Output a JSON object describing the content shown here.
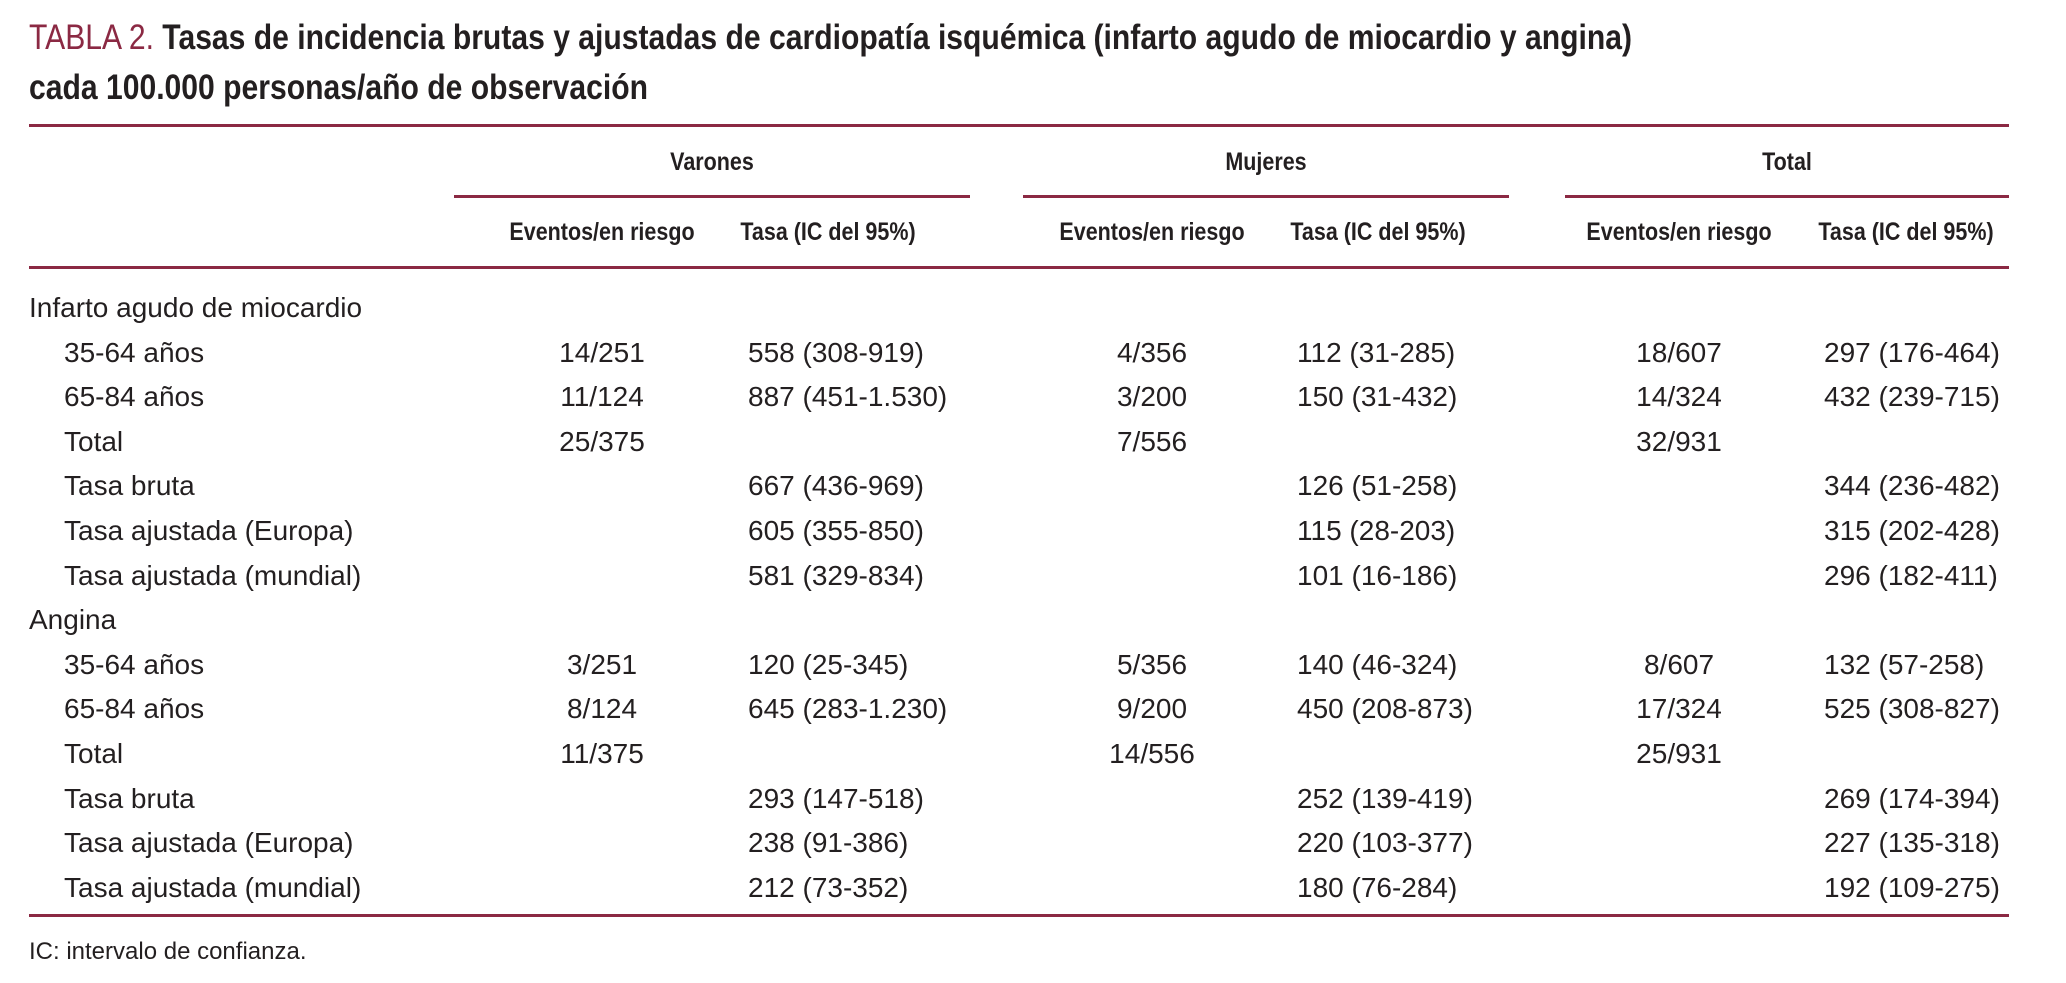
{
  "title": {
    "label": "TABLA 2.",
    "line1": "Tasas de incidencia brutas y ajustadas de cardiopatía isquémica (infarto agudo de miocardio y angina)",
    "line2": "cada 100.000 personas/año de observación"
  },
  "colors": {
    "accent": "#8b2943",
    "text": "#231f20"
  },
  "groups": [
    "Varones",
    "Mujeres",
    "Total"
  ],
  "subheaders": [
    "Eventos/en riesgo",
    "Tasa (IC del 95%)",
    "Eventos/en riesgo",
    "Tasa (IC del 95%)",
    "Eventos/en riesgo",
    "Tasa (IC del 95%)"
  ],
  "rows": [
    {
      "label": "Infarto agudo de miocardio",
      "section": true,
      "cells": [
        "",
        "",
        "",
        "",
        "",
        ""
      ]
    },
    {
      "label": "35-64 años",
      "cells": [
        "14/251",
        "558 (308-919)",
        "4/356",
        "112 (31-285)",
        "18/607",
        "297 (176-464)"
      ]
    },
    {
      "label": "65-84 años",
      "cells": [
        "11/124",
        "887 (451-1.530)",
        "3/200",
        "150 (31-432)",
        "14/324",
        "432 (239-715)"
      ]
    },
    {
      "label": "Total",
      "cells": [
        "25/375",
        "",
        "7/556",
        "",
        "32/931",
        ""
      ]
    },
    {
      "label": "Tasa bruta",
      "cells": [
        "",
        "667 (436-969)",
        "",
        "126 (51-258)",
        "",
        "344 (236-482)"
      ]
    },
    {
      "label": "Tasa ajustada (Europa)",
      "cells": [
        "",
        "605 (355-850)",
        "",
        "115 (28-203)",
        "",
        "315 (202-428)"
      ]
    },
    {
      "label": "Tasa ajustada (mundial)",
      "cells": [
        "",
        "581 (329-834)",
        "",
        "101 (16-186)",
        "",
        "296 (182-411)"
      ]
    },
    {
      "label": "Angina",
      "section": true,
      "cells": [
        "",
        "",
        "",
        "",
        "",
        ""
      ]
    },
    {
      "label": "35-64 años",
      "cells": [
        "3/251",
        "120 (25-345)",
        "5/356",
        "140 (46-324)",
        "8/607",
        "132 (57-258)"
      ]
    },
    {
      "label": "65-84 años",
      "cells": [
        "8/124",
        "645 (283-1.230)",
        "9/200",
        "450 (208-873)",
        "17/324",
        "525 (308-827)"
      ]
    },
    {
      "label": "Total",
      "cells": [
        "11/375",
        "",
        "14/556",
        "",
        "25/931",
        ""
      ]
    },
    {
      "label": "Tasa bruta",
      "cells": [
        "",
        "293 (147-518)",
        "",
        "252 (139-419)",
        "",
        "269 (174-394)"
      ]
    },
    {
      "label": "Tasa ajustada (Europa)",
      "cells": [
        "",
        "238 (91-386)",
        "",
        "220 (103-377)",
        "",
        "227 (135-318)"
      ]
    },
    {
      "label": "Tasa ajustada (mundial)",
      "cells": [
        "",
        "212 (73-352)",
        "",
        "180 (76-284)",
        "",
        "192 (109-275)"
      ]
    }
  ],
  "footnote": "IC: intervalo de confianza."
}
